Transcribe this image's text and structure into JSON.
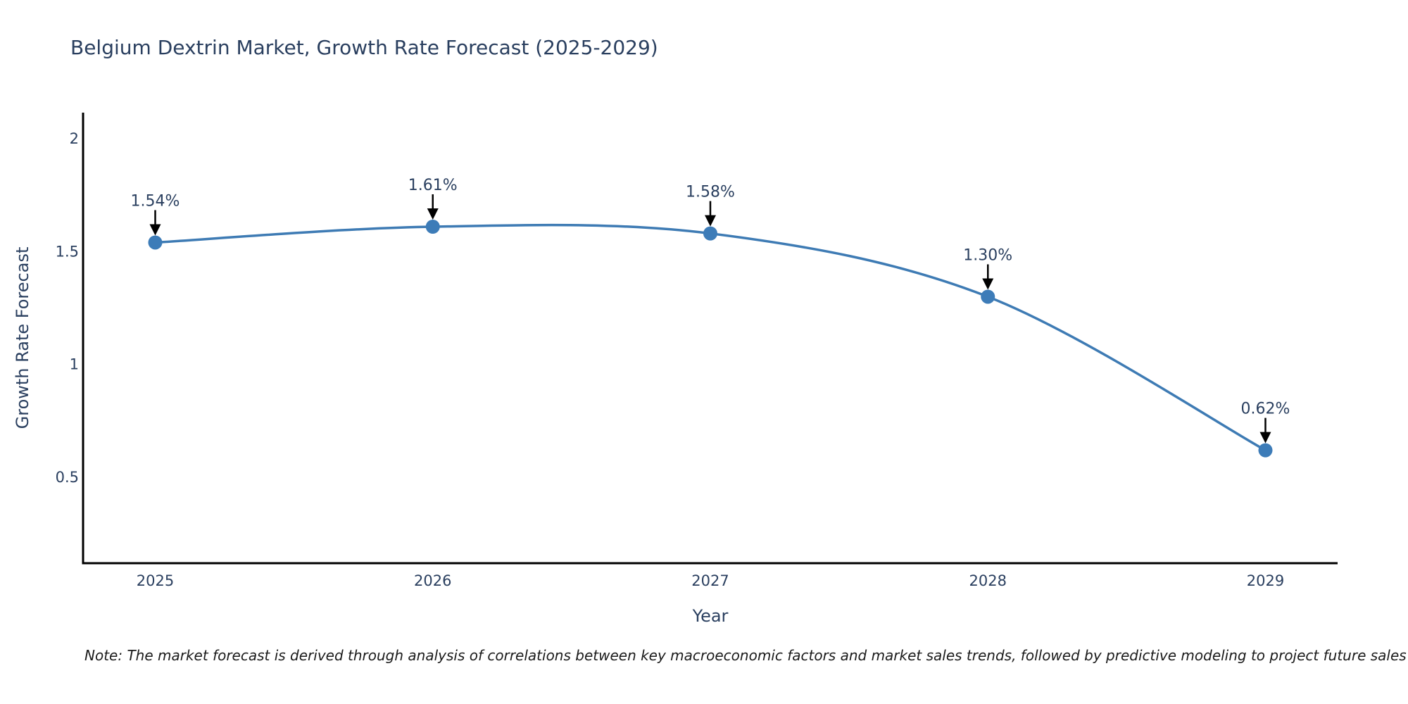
{
  "chart_data": {
    "type": "line",
    "title": "Belgium Dextrin Market, Growth Rate Forecast (2025-2029)",
    "xlabel": "Year",
    "ylabel": "Growth Rate Forecast",
    "x": [
      2025,
      2026,
      2027,
      2028,
      2029
    ],
    "xtick_labels": [
      "2025",
      "2026",
      "2027",
      "2028",
      "2029"
    ],
    "values": [
      1.54,
      1.61,
      1.58,
      1.3,
      0.62
    ],
    "point_labels": [
      "1.54%",
      "1.61%",
      "1.58%",
      "1.30%",
      "0.62%"
    ],
    "yticks": [
      0.5,
      1,
      1.5,
      2
    ],
    "ytick_labels": [
      "0.5",
      "1",
      "1.5",
      "2"
    ],
    "ylim": [
      0.12,
      2.115
    ],
    "xlim": [
      2024.74,
      2029.26
    ],
    "grid": false,
    "legend": "none",
    "line_shape": "spline",
    "line_color": "#3e7bb4",
    "marker_color": "#3d7cb8",
    "arrow_color": "#000000",
    "axis_color": "#000000",
    "text_color": "#2a3f5f",
    "background": "#ffffff",
    "note": "Note: The market forecast is derived through analysis of correlations between key macroeconomic factors and market sales trends, followed by predictive modeling to project future sales"
  }
}
